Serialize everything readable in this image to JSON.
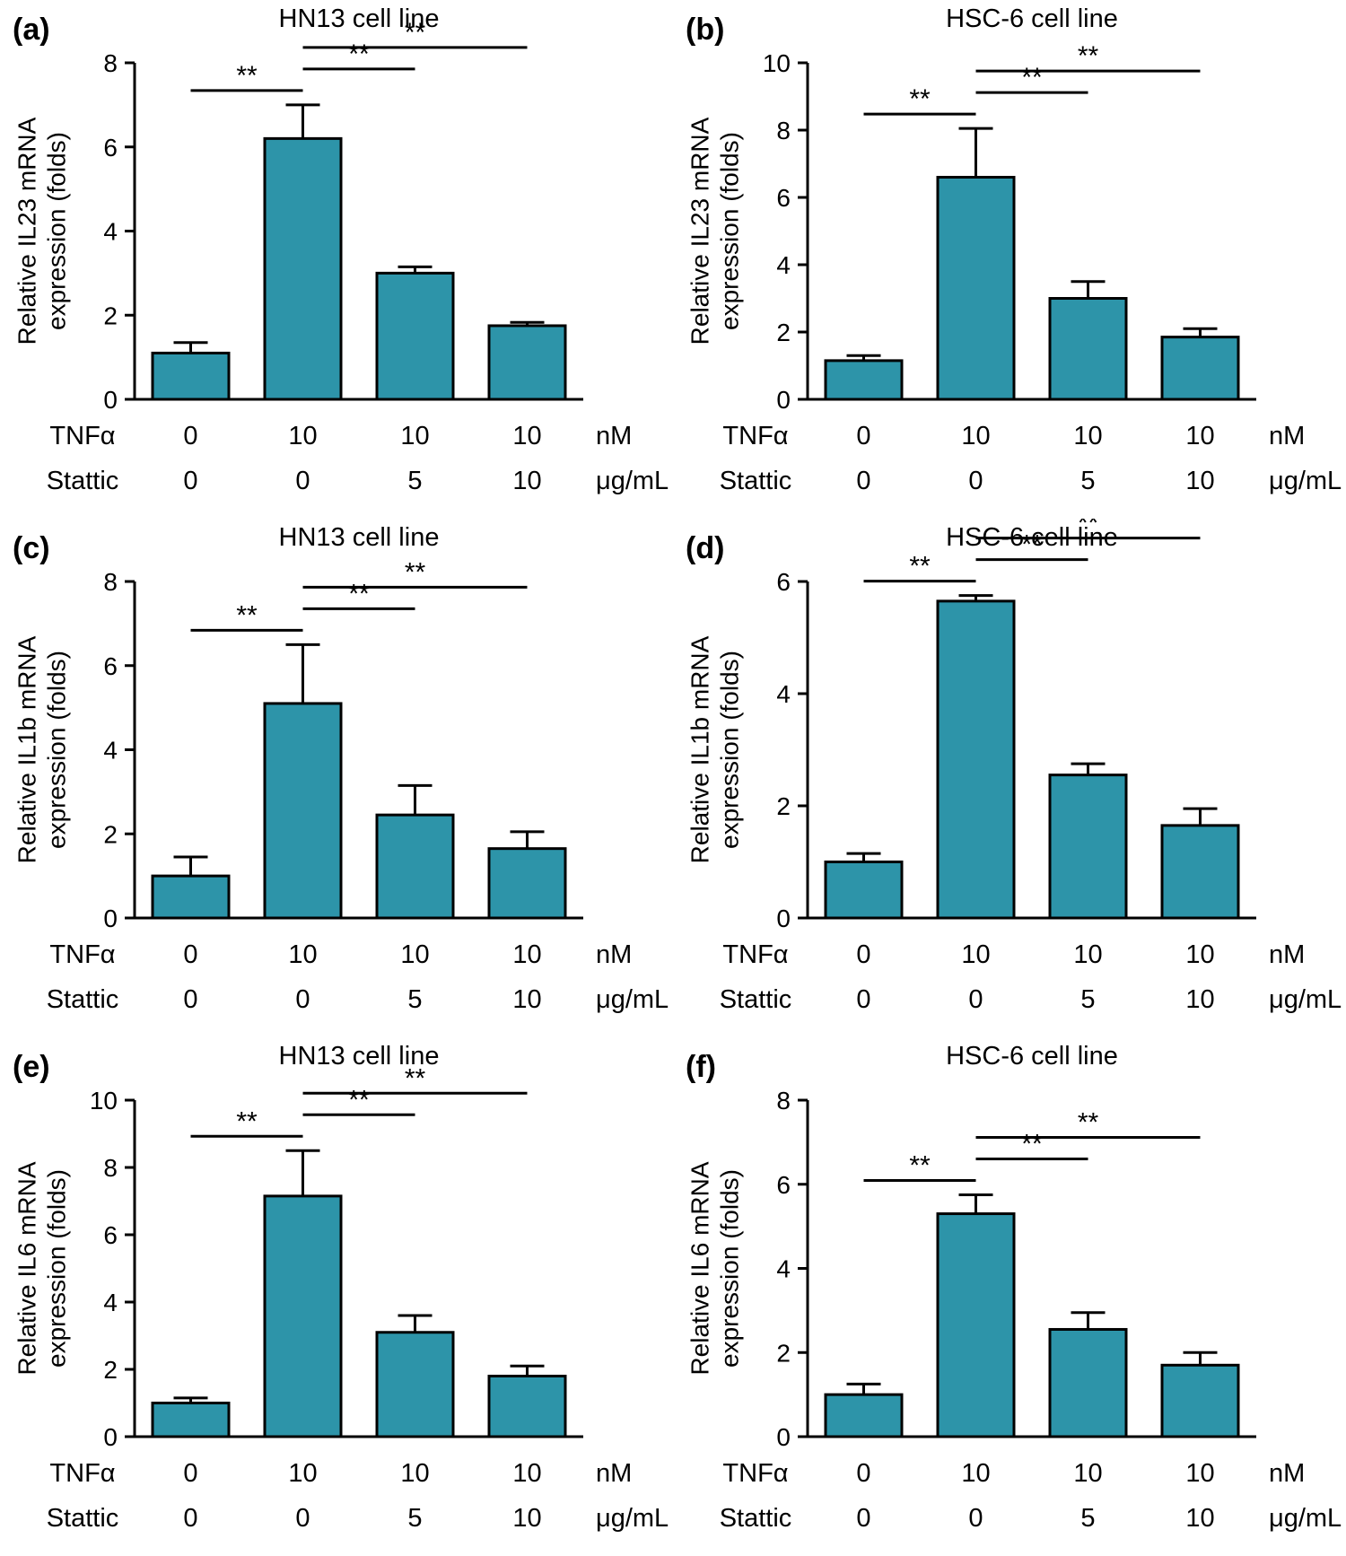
{
  "styles": {
    "bar_color": "#2D94A9",
    "axis_color": "#000000"
  },
  "x_axis": {
    "row1_label": "TNFα",
    "row1_values": [
      "0",
      "10",
      "10",
      "10"
    ],
    "row1_unit": "nM",
    "row2_label": "Stattic",
    "row2_values": [
      "0",
      "0",
      "5",
      "10"
    ],
    "row2_unit": "μg/mL"
  },
  "treatment_groups": [
    "TNFα 0 nM + Stattic 0 μg/mL",
    "TNFα 10 nM + Stattic 0 μg/mL",
    "TNFα 10 nM + Stattic 5 μg/mL",
    "TNFα 10 nM + Stattic 10 μg/mL"
  ],
  "chart_data": [
    {
      "panel_label": "(a)",
      "type": "bar",
      "title": "HN13 cell line",
      "ylabel": "Relative IL23 mRNA expression (folds)",
      "ylabel_lines": [
        "Relative IL23 mRNA",
        "expression (folds)"
      ],
      "ylim": [
        0,
        8
      ],
      "yticks": [
        0,
        2,
        4,
        6,
        8
      ],
      "categories": [
        "TNFα 0 / Stattic 0",
        "TNFα 10 / Stattic 0",
        "TNFα 10 / Stattic 5",
        "TNFα 10 / Stattic 10"
      ],
      "values": [
        1.1,
        6.2,
        3.0,
        1.75
      ],
      "errors": [
        0.25,
        0.8,
        0.15,
        0.08
      ],
      "significance": [
        {
          "bars": [
            0,
            1
          ],
          "label": "**"
        },
        {
          "bars": [
            1,
            2
          ],
          "label": "**"
        },
        {
          "bars": [
            1,
            3
          ],
          "label": "**"
        }
      ]
    },
    {
      "panel_label": "(b)",
      "type": "bar",
      "title": "HSC-6 cell line",
      "ylabel": "Relative IL23 mRNA expression (folds)",
      "ylabel_lines": [
        "Relative IL23 mRNA",
        "expression (folds)"
      ],
      "ylim": [
        0,
        10
      ],
      "yticks": [
        0,
        2,
        4,
        6,
        8,
        10
      ],
      "categories": [
        "TNFα 0 / Stattic 0",
        "TNFα 10 / Stattic 0",
        "TNFα 10 / Stattic 5",
        "TNFα 10 / Stattic 10"
      ],
      "values": [
        1.15,
        6.6,
        3.0,
        1.85
      ],
      "errors": [
        0.15,
        1.45,
        0.5,
        0.25
      ],
      "significance": [
        {
          "bars": [
            0,
            1
          ],
          "label": "**"
        },
        {
          "bars": [
            1,
            2
          ],
          "label": "**"
        },
        {
          "bars": [
            1,
            3
          ],
          "label": "**"
        }
      ]
    },
    {
      "panel_label": "(c)",
      "type": "bar",
      "title": "HN13 cell line",
      "ylabel": "Relative IL1b mRNA expression (folds)",
      "ylabel_lines": [
        "Relative IL1b mRNA",
        "expression (folds)"
      ],
      "ylim": [
        0,
        8
      ],
      "yticks": [
        0,
        2,
        4,
        6,
        8
      ],
      "categories": [
        "TNFα 0 / Stattic 0",
        "TNFα 10 / Stattic 0",
        "TNFα 10 / Stattic 5",
        "TNFα 10 / Stattic 10"
      ],
      "values": [
        1.0,
        5.1,
        2.45,
        1.65
      ],
      "errors": [
        0.45,
        1.4,
        0.7,
        0.4
      ],
      "significance": [
        {
          "bars": [
            0,
            1
          ],
          "label": "**"
        },
        {
          "bars": [
            1,
            2
          ],
          "label": "**"
        },
        {
          "bars": [
            1,
            3
          ],
          "label": "**"
        }
      ]
    },
    {
      "panel_label": "(d)",
      "type": "bar",
      "title": "HSC-6 cell line",
      "ylabel": "Relative IL1b mRNA expression (folds)",
      "ylabel_lines": [
        "Relative IL1b mRNA",
        "expression (folds)"
      ],
      "ylim": [
        0,
        6
      ],
      "yticks": [
        0,
        2,
        4,
        6
      ],
      "categories": [
        "TNFα 0 / Stattic 0",
        "TNFα 10 / Stattic 0",
        "TNFα 10 / Stattic 5",
        "TNFα 10 / Stattic 10"
      ],
      "values": [
        1.0,
        5.65,
        2.55,
        1.65
      ],
      "errors": [
        0.15,
        0.1,
        0.2,
        0.3
      ],
      "significance": [
        {
          "bars": [
            0,
            1
          ],
          "label": "**"
        },
        {
          "bars": [
            1,
            2
          ],
          "label": "**"
        },
        {
          "bars": [
            1,
            3
          ],
          "label": "**"
        }
      ]
    },
    {
      "panel_label": "(e)",
      "type": "bar",
      "title": "HN13 cell line",
      "ylabel": "Relative IL6 mRNA expression (folds)",
      "ylabel_lines": [
        "Relative IL6 mRNA",
        "expression (folds)"
      ],
      "ylim": [
        0,
        10
      ],
      "yticks": [
        0,
        2,
        4,
        6,
        8,
        10
      ],
      "categories": [
        "TNFα 0 / Stattic 0",
        "TNFα 10 / Stattic 0",
        "TNFα 10 / Stattic 5",
        "TNFα 10 / Stattic 10"
      ],
      "values": [
        1.0,
        7.15,
        3.1,
        1.8
      ],
      "errors": [
        0.15,
        1.35,
        0.5,
        0.3
      ],
      "significance": [
        {
          "bars": [
            0,
            1
          ],
          "label": "**"
        },
        {
          "bars": [
            1,
            2
          ],
          "label": "**"
        },
        {
          "bars": [
            1,
            3
          ],
          "label": "**"
        }
      ]
    },
    {
      "panel_label": "(f)",
      "type": "bar",
      "title": "HSC-6 cell line",
      "ylabel": "Relative IL6 mRNA expression (folds)",
      "ylabel_lines": [
        "Relative IL6 mRNA",
        "expression (folds)"
      ],
      "ylim": [
        0,
        8
      ],
      "yticks": [
        0,
        2,
        4,
        6,
        8
      ],
      "categories": [
        "TNFα 0 / Stattic 0",
        "TNFα 10 / Stattic 0",
        "TNFα 10 / Stattic 5",
        "TNFα 10 / Stattic 10"
      ],
      "values": [
        1.0,
        5.3,
        2.55,
        1.7
      ],
      "errors": [
        0.25,
        0.45,
        0.4,
        0.3
      ],
      "significance": [
        {
          "bars": [
            0,
            1
          ],
          "label": "**"
        },
        {
          "bars": [
            1,
            2
          ],
          "label": "**"
        },
        {
          "bars": [
            1,
            3
          ],
          "label": "**"
        }
      ]
    }
  ]
}
